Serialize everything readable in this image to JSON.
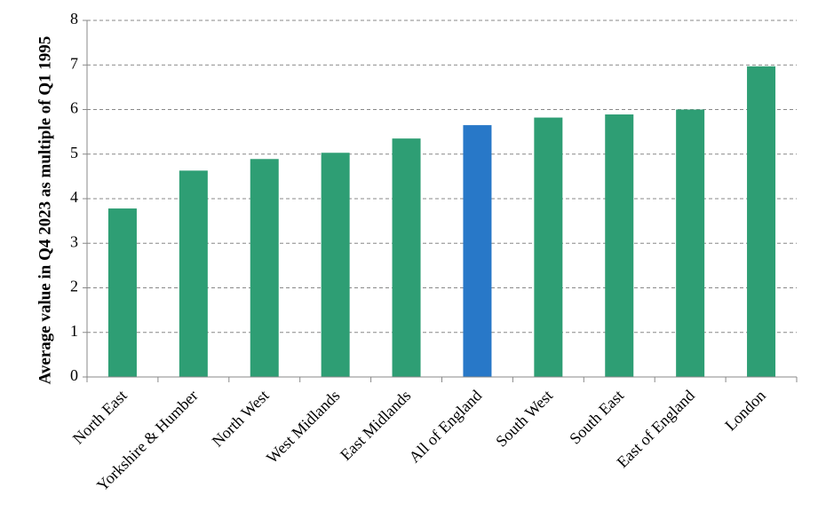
{
  "chart_data": {
    "type": "bar",
    "title": "",
    "xlabel": "",
    "ylabel": "Average value in Q4 2023 as multiple  of Q1 1995",
    "categories": [
      "North East",
      "Yorkshire & Humber",
      "North West",
      "West Midlands",
      "East Midlands",
      "All of England",
      "South West",
      "South East",
      "East of England",
      "London"
    ],
    "values": [
      3.78,
      4.63,
      4.89,
      5.03,
      5.35,
      5.65,
      5.82,
      5.89,
      6.0,
      6.97
    ],
    "highlight_category": "All of England",
    "ylim": [
      0,
      8
    ],
    "yticks": [
      0,
      1,
      2,
      3,
      4,
      5,
      6,
      7,
      8
    ],
    "grid": true,
    "legend": "none",
    "colors": {
      "bar": "#2e9e74",
      "highlight": "#2878c8",
      "grid": "#888888",
      "axis": "#888888"
    }
  }
}
